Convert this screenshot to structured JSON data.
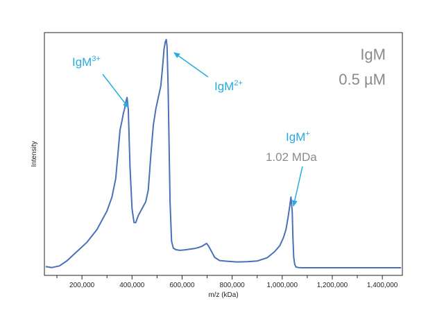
{
  "chart_data": {
    "type": "line",
    "title": "",
    "xlabel": "m/z (kDa)",
    "ylabel": "Intensity",
    "xlim": [
      50000,
      1480000
    ],
    "ylim": [
      0,
      100
    ],
    "x_ticks": [
      200000,
      400000,
      600000,
      800000,
      1000000,
      1200000,
      1400000
    ],
    "x_tick_labels": [
      "200,000",
      "400,000",
      "600,000",
      "800,000",
      "1,000,000",
      "1,200,000",
      "1,400,000"
    ],
    "y_ticks_shown": false,
    "grid": false,
    "series": [
      {
        "color": "#4a70b6",
        "x": [
          55000,
          80000,
          110000,
          140000,
          180000,
          220000,
          260000,
          300000,
          320000,
          335000,
          345000,
          352000,
          360000,
          365000,
          370000,
          375000,
          380000,
          385000,
          392000,
          400000,
          408000,
          415000,
          425000,
          435000,
          445000,
          455000,
          465000,
          475000,
          485000,
          495000,
          505000,
          515000,
          522000,
          528000,
          533000,
          537000,
          540000,
          544000,
          548000,
          552000,
          558000,
          565000,
          575000,
          590000,
          610000,
          630000,
          650000,
          665000,
          680000,
          690000,
          698000,
          705000,
          715000,
          730000,
          750000,
          780000,
          820000,
          860000,
          900000,
          940000,
          970000,
          990000,
          1005000,
          1015000,
          1023000,
          1030000,
          1035000,
          1040000,
          1043000,
          1046000,
          1050000,
          1055000,
          1065000,
          1080000,
          1120000,
          1200000,
          1300000,
          1400000,
          1475000
        ],
        "y": [
          2.0,
          1.6,
          2.3,
          4.5,
          8.5,
          12.5,
          18.0,
          26.0,
          32.0,
          40.0,
          52.0,
          61.0,
          65.0,
          68.0,
          70.0,
          73.0,
          75.0,
          70.0,
          45.0,
          27.0,
          21.0,
          21.0,
          24.0,
          26.0,
          28.0,
          30.0,
          35.0,
          50.0,
          63.0,
          70.0,
          75.0,
          80.0,
          88.0,
          96.0,
          99.0,
          100.0,
          97.0,
          80.0,
          55.0,
          30.0,
          13.0,
          10.0,
          9.3,
          9.0,
          9.2,
          9.5,
          9.8,
          10.2,
          10.8,
          11.5,
          12.0,
          11.0,
          9.0,
          6.0,
          4.6,
          4.3,
          4.0,
          4.1,
          4.4,
          5.8,
          8.5,
          11.0,
          14.5,
          18.0,
          23.0,
          28.0,
          32.0,
          26.0,
          14.0,
          6.0,
          3.0,
          1.8,
          1.6,
          1.5,
          1.5,
          1.5,
          1.5,
          1.5,
          1.5
        ]
      }
    ],
    "annotations": [
      {
        "base": "IgM",
        "sup": "3+",
        "color": "#27aae1",
        "peak_x": 375000,
        "peak_y": 75
      },
      {
        "base": "IgM",
        "sup": "2+",
        "color": "#27aae1",
        "peak_x": 540000,
        "peak_y": 97
      },
      {
        "base": "IgM",
        "sup": "+",
        "sub_label": "1.02 MDa",
        "color": "#27aae1",
        "sub_color": "#8a8a8a",
        "peak_x": 1040000,
        "peak_y": 28
      }
    ],
    "corner_label": {
      "line1": "IgM",
      "line2": "0.5 µM",
      "color": "#8a8a8a"
    }
  }
}
